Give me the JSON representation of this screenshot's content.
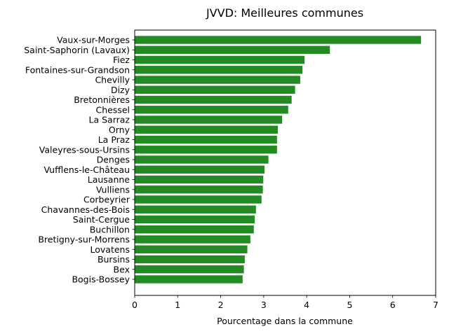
{
  "chart_data": {
    "type": "bar",
    "orientation": "horizontal",
    "title": "JVVD: Meilleures communes",
    "xlabel": "Pourcentage dans la commune",
    "ylabel": "",
    "xlim": [
      0,
      7
    ],
    "xticks": [
      0,
      1,
      2,
      3,
      4,
      5,
      6,
      7
    ],
    "bar_color": "#228b22",
    "categories": [
      "Vaux-sur-Morges",
      "Saint-Saphorin (Lavaux)",
      "Fiez",
      "Fontaines-sur-Grandson",
      "Chevilly",
      "Dizy",
      "Bretonnières",
      "Chessel",
      "La Sarraz",
      "Orny",
      "La Praz",
      "Valeyres-sous-Ursins",
      "Denges",
      "Vufflens-le-Château",
      "Lausanne",
      "Vulliens",
      "Corbeyrier",
      "Chavannes-des-Bois",
      "Saint-Cergue",
      "Buchillon",
      "Bretigny-sur-Morrens",
      "Lovatens",
      "Bursins",
      "Bex",
      "Bogis-Bossey"
    ],
    "values": [
      6.66,
      4.54,
      3.95,
      3.9,
      3.85,
      3.73,
      3.65,
      3.57,
      3.43,
      3.33,
      3.31,
      3.31,
      3.11,
      3.02,
      2.99,
      2.98,
      2.95,
      2.82,
      2.79,
      2.77,
      2.69,
      2.62,
      2.56,
      2.54,
      2.51
    ]
  }
}
